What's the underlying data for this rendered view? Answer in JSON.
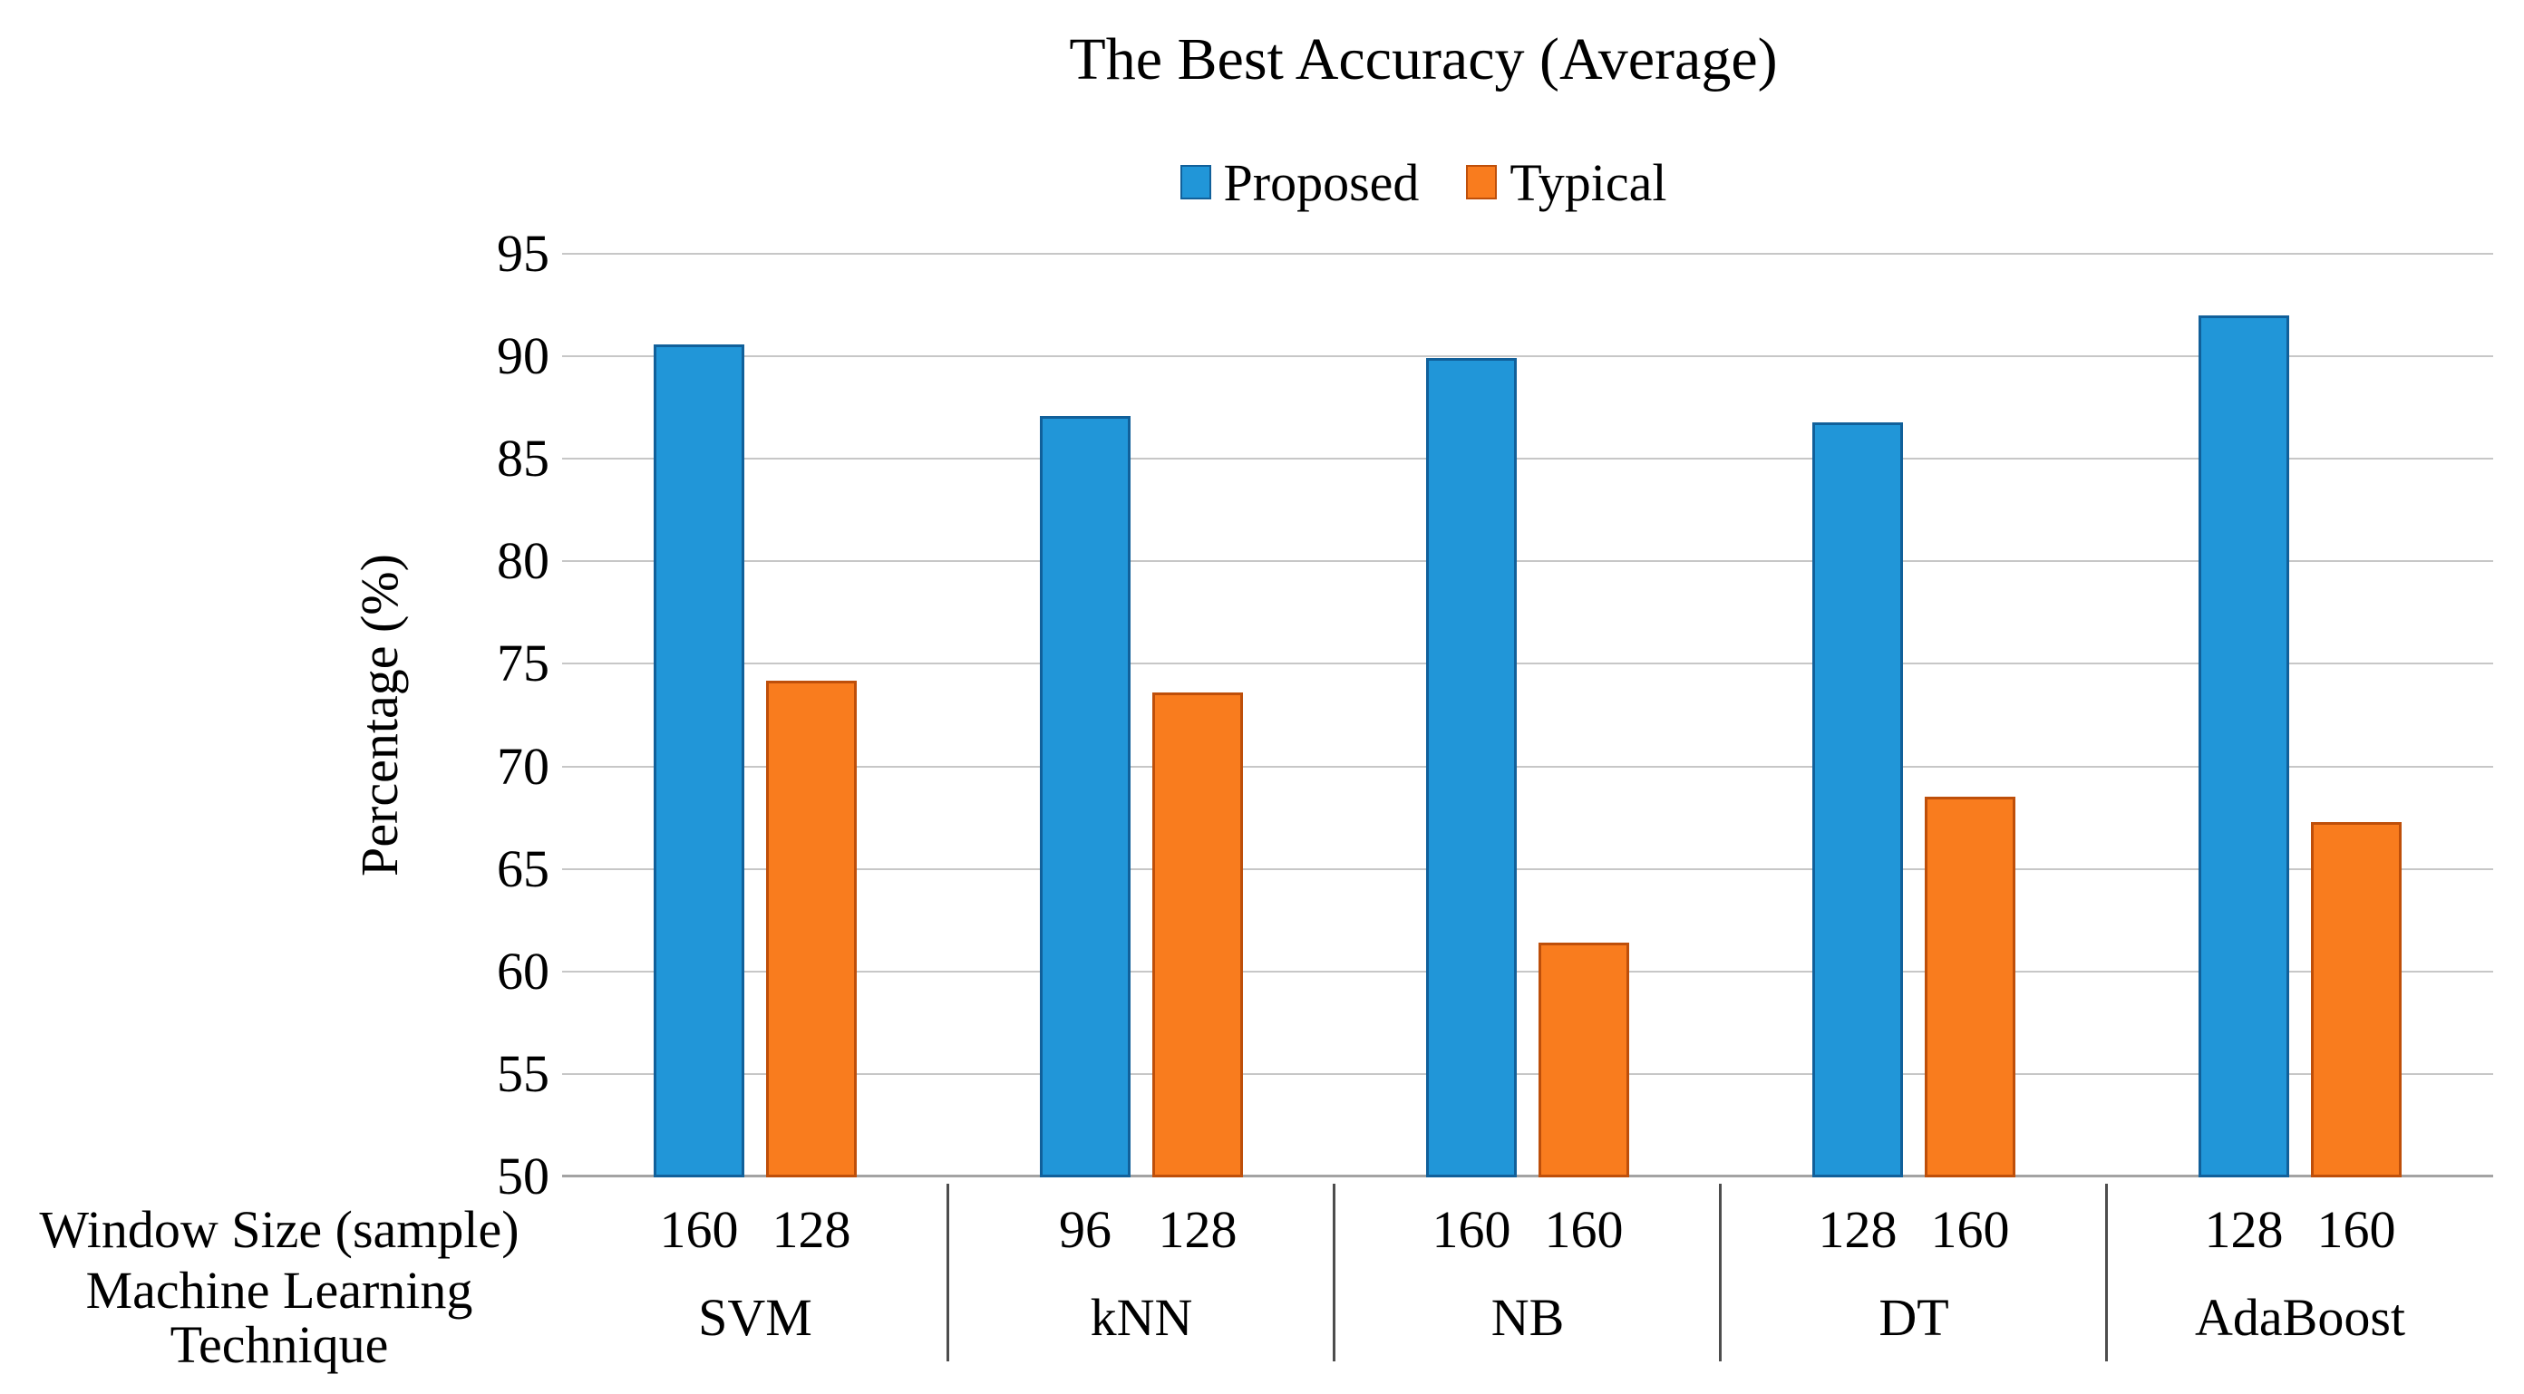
{
  "chart_data": {
    "type": "bar",
    "title": "The Best Accuracy (Average)",
    "ylabel": "Percentage (%)",
    "ylim": [
      50,
      95
    ],
    "yticks": [
      95,
      90,
      85,
      80,
      75,
      70,
      65,
      60,
      55,
      50
    ],
    "grid": true,
    "legend_position": "top-center",
    "categories": [
      "SVM",
      "kNN",
      "NB",
      "DT",
      "AdaBoost"
    ],
    "series": [
      {
        "name": "Proposed",
        "color": "#2196D8",
        "border_color": "#11609A",
        "values": [
          90.6,
          87.1,
          89.9,
          86.8,
          92.0
        ],
        "window_sizes": [
          "160",
          "96",
          "160",
          "128",
          "128"
        ]
      },
      {
        "name": "Typical",
        "color": "#F97C1E",
        "border_color": "#BE4F0A",
        "values": [
          74.2,
          73.6,
          61.4,
          68.5,
          67.3
        ],
        "window_sizes": [
          "128",
          "128",
          "160",
          "160",
          "160"
        ]
      }
    ],
    "x_axis": {
      "row1_header": "Window Size (sample)",
      "row2_header_line1": "Machine Learning",
      "row2_header_line2": "Technique"
    },
    "colors": {
      "gridline": "#C7C7C7",
      "axis_line": "#A3A3A3",
      "separator": "#4D4D4D",
      "text": "#000000",
      "background": "#FFFFFF"
    }
  }
}
